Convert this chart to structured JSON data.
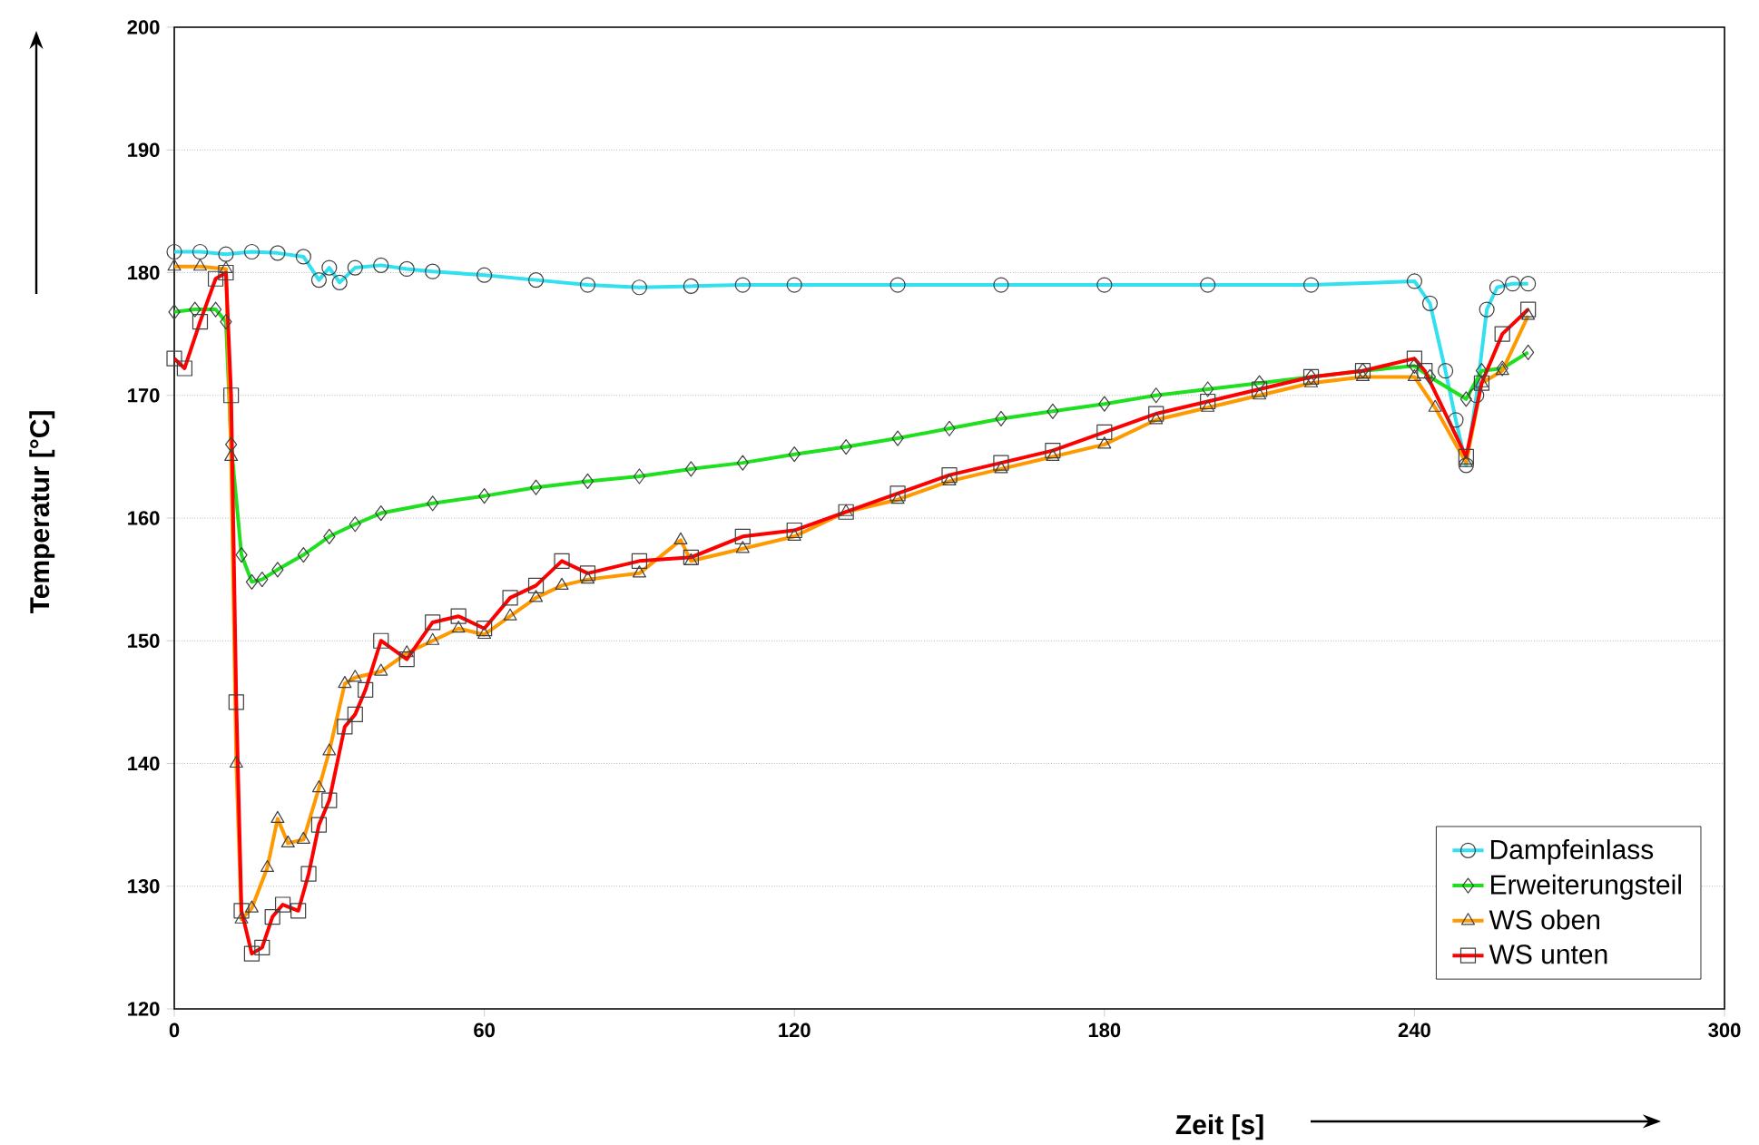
{
  "chart_data": {
    "type": "line",
    "xlabel": "Zeit [s]",
    "ylabel": "Temperatur [°C]",
    "xlim": [
      0,
      300
    ],
    "ylim": [
      120,
      200
    ],
    "xticks": [
      0,
      60,
      120,
      180,
      240,
      300
    ],
    "yticks": [
      120,
      130,
      140,
      150,
      160,
      170,
      180,
      190,
      200
    ],
    "grid": "y",
    "legend": "bottom right",
    "line_style": "solid",
    "series": [
      {
        "name": "Dampfeinlass",
        "color": "#33e0f0",
        "marker": "circle",
        "x": [
          0,
          5,
          10,
          15,
          20,
          25,
          28,
          30,
          32,
          35,
          40,
          45,
          50,
          60,
          70,
          80,
          90,
          100,
          110,
          120,
          140,
          160,
          180,
          200,
          220,
          240,
          243,
          246,
          248,
          250,
          252,
          254,
          256,
          259,
          262
        ],
        "values": [
          181.7,
          181.7,
          181.5,
          181.7,
          181.6,
          181.3,
          179.4,
          180.4,
          179.2,
          180.4,
          180.6,
          180.3,
          180.1,
          179.8,
          179.4,
          179,
          178.8,
          178.9,
          179,
          179,
          179,
          179,
          179,
          179,
          179,
          179.3,
          177.5,
          172,
          168,
          164.3,
          170,
          177,
          178.8,
          179.1,
          179.1
        ]
      },
      {
        "name": "Erweiterungsteil",
        "color": "#1ee01e",
        "marker": "diamond",
        "x": [
          0,
          4,
          8,
          10,
          11,
          13,
          15,
          17,
          20,
          25,
          30,
          35,
          40,
          50,
          60,
          70,
          80,
          90,
          100,
          110,
          120,
          130,
          140,
          150,
          160,
          170,
          180,
          190,
          200,
          210,
          220,
          230,
          240,
          243,
          250,
          253,
          257,
          262
        ],
        "values": [
          176.8,
          177,
          177,
          176,
          166,
          157,
          154.8,
          155,
          155.8,
          157,
          158.5,
          159.5,
          160.4,
          161.2,
          161.8,
          162.5,
          163,
          163.4,
          164,
          164.5,
          165.2,
          165.8,
          166.5,
          167.3,
          168.1,
          168.7,
          169.3,
          170,
          170.5,
          171,
          171.5,
          172,
          172.4,
          171.5,
          169.7,
          172,
          172.2,
          173.5
        ]
      },
      {
        "name": "WS oben",
        "color": "#ff9900",
        "marker": "triangle",
        "x": [
          0,
          5,
          10,
          11,
          12,
          13,
          15,
          18,
          20,
          22,
          25,
          28,
          30,
          33,
          35,
          40,
          45,
          50,
          55,
          60,
          65,
          70,
          75,
          80,
          90,
          98,
          100,
          110,
          120,
          130,
          140,
          150,
          160,
          170,
          180,
          190,
          200,
          210,
          220,
          230,
          240,
          244,
          250,
          253,
          257,
          262
        ],
        "values": [
          180.5,
          180.5,
          180.3,
          165,
          140,
          127.3,
          128.2,
          131.5,
          135.5,
          133.5,
          133.8,
          138,
          141,
          146.5,
          147,
          147.5,
          149,
          150,
          151,
          150.5,
          152,
          153.5,
          154.5,
          155,
          155.5,
          158.2,
          156.5,
          157.5,
          158.5,
          160.5,
          161.5,
          163,
          164,
          165,
          166,
          168,
          169,
          170,
          171,
          171.5,
          171.5,
          169,
          164.5,
          171,
          172,
          176.5
        ]
      },
      {
        "name": "WS unten",
        "color": "#ff0000",
        "marker": "square",
        "x": [
          0,
          2,
          5,
          8,
          10,
          11,
          12,
          13,
          15,
          17,
          19,
          21,
          24,
          26,
          28,
          30,
          33,
          35,
          37,
          40,
          45,
          50,
          55,
          60,
          65,
          70,
          75,
          80,
          90,
          100,
          110,
          120,
          130,
          140,
          150,
          160,
          170,
          180,
          190,
          200,
          210,
          220,
          230,
          240,
          242,
          250,
          253,
          257,
          262
        ],
        "values": [
          173,
          172.2,
          176,
          179.5,
          180,
          170,
          145,
          128,
          124.5,
          125,
          127.5,
          128.5,
          128,
          131,
          135,
          137,
          143,
          144,
          146,
          150,
          148.5,
          151.5,
          152,
          151,
          153.5,
          154.5,
          156.5,
          155.5,
          156.5,
          156.8,
          158.5,
          159,
          160.5,
          162,
          163.5,
          164.5,
          165.5,
          167,
          168.5,
          169.5,
          170.5,
          171.5,
          172,
          173,
          172,
          165,
          171,
          175,
          177
        ]
      }
    ]
  }
}
